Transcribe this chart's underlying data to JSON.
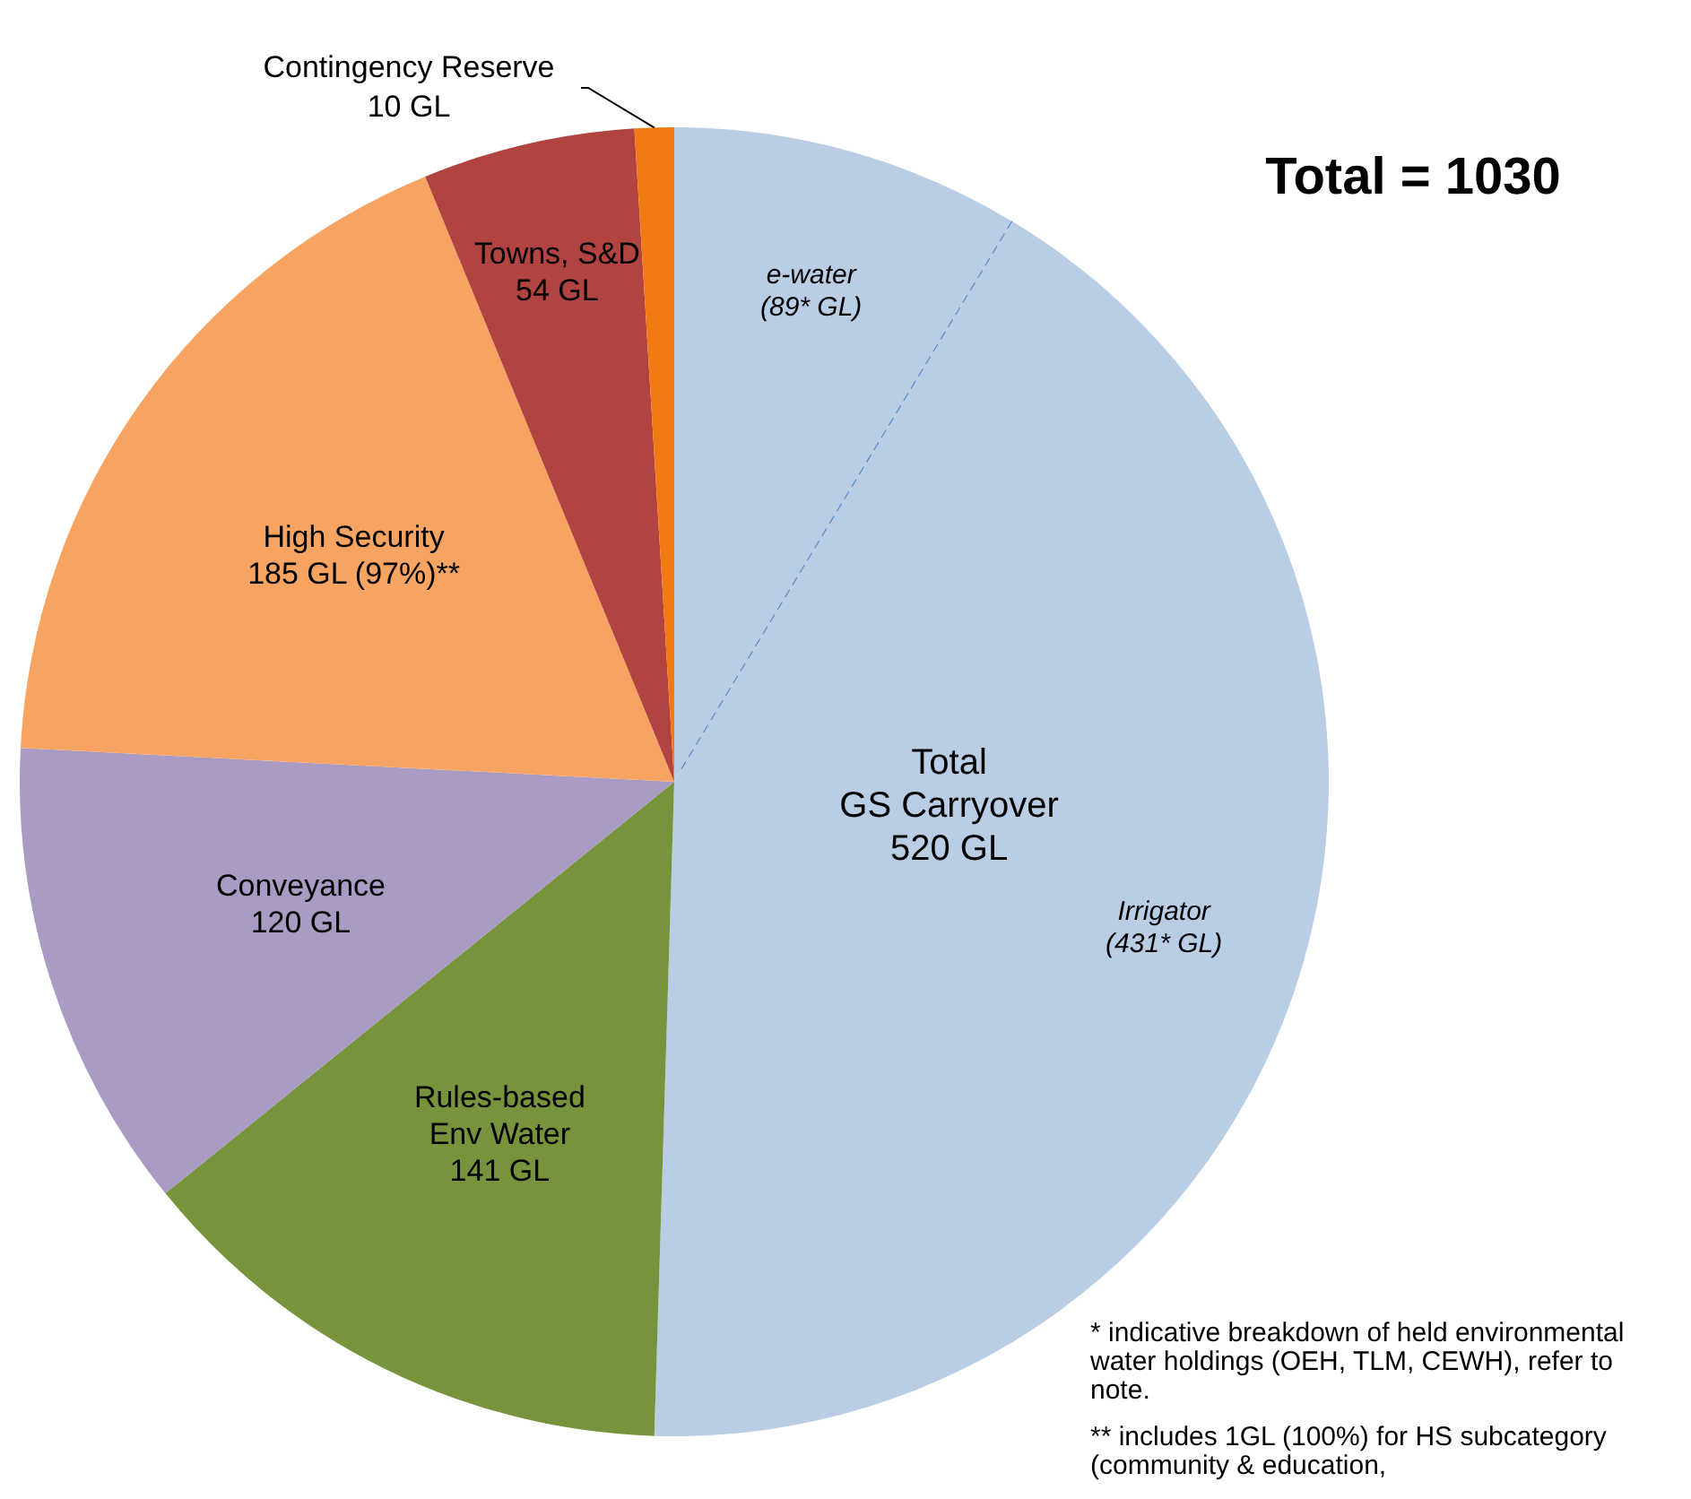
{
  "chart_data": {
    "type": "pie",
    "title": "Total = 1030",
    "categories": [
      "e-water",
      "Irrigator",
      "Rules-based\nEnv Water",
      "Conveyance",
      "High Security",
      "Towns, S&D",
      "Contingency Reserve"
    ],
    "values": [
      89,
      431,
      141,
      120,
      185,
      54,
      10
    ],
    "value_labels": [
      "(89* GL)",
      "(431* GL)",
      "141 GL",
      "120 GL",
      "185 GL (97%)**",
      "54 GL",
      "10 GL"
    ],
    "colors": [
      "#b9cde5",
      "#b9cde5",
      "#77933c",
      "#a99bc4",
      "#f7a462",
      "#b14441",
      "#f27a12"
    ],
    "annotations": [
      "Total\nGS Carryover\n520 GL",
      "* indicative breakdown of held environmental water holdings (OEH, TLM, CEWH), refer to note.",
      "** includes 1GL (100%) for HS subcategory (community & education,"
    ]
  }
}
